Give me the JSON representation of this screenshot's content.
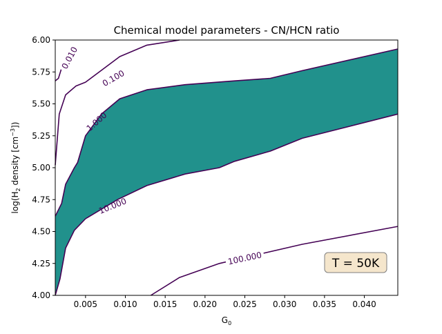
{
  "chart_data": {
    "type": "contour",
    "title": "Chemical model parameters - CN/HCN ratio",
    "xlabel": "G",
    "xlabel_sub": "0",
    "ylabel_parts": [
      "log(H",
      "2",
      " density [cm",
      "−3",
      "])"
    ],
    "xlim": [
      0.0012,
      0.0442
    ],
    "ylim": [
      4.0,
      6.0
    ],
    "x_ticks": [
      {
        "value": 0.005,
        "label": "0.005"
      },
      {
        "value": 0.01,
        "label": "0.010"
      },
      {
        "value": 0.015,
        "label": "0.015"
      },
      {
        "value": 0.02,
        "label": "0.020"
      },
      {
        "value": 0.025,
        "label": "0.025"
      },
      {
        "value": 0.03,
        "label": "0.030"
      },
      {
        "value": 0.035,
        "label": "0.035"
      },
      {
        "value": 0.04,
        "label": "0.040"
      }
    ],
    "y_ticks": [
      {
        "value": 4.0,
        "label": "4.00"
      },
      {
        "value": 4.25,
        "label": "4.25"
      },
      {
        "value": 4.5,
        "label": "4.50"
      },
      {
        "value": 4.75,
        "label": "4.75"
      },
      {
        "value": 5.0,
        "label": "5.00"
      },
      {
        "value": 5.25,
        "label": "5.25"
      },
      {
        "value": 5.5,
        "label": "5.50"
      },
      {
        "value": 5.75,
        "label": "5.75"
      },
      {
        "value": 6.0,
        "label": "6.00"
      }
    ],
    "line_color": "#440154",
    "fill_color": "#21918c",
    "filled_band": {
      "from_level": "1.000",
      "to_level": "10.000"
    },
    "contours": [
      {
        "level": "0.010",
        "points": [
          [
            0.0012,
            5.68
          ],
          [
            0.0016,
            5.7
          ],
          [
            0.0022,
            5.82
          ]
        ],
        "label_at": [
          0.003,
          5.86
        ],
        "label_angle": -62
      },
      {
        "level": "0.100",
        "points": [
          [
            0.0012,
            5.02
          ],
          [
            0.0017,
            5.42
          ],
          [
            0.0025,
            5.57
          ],
          [
            0.0038,
            5.64
          ],
          [
            0.005,
            5.67
          ],
          [
            0.0093,
            5.87
          ],
          [
            0.0127,
            5.96
          ],
          [
            0.0168,
            6.0
          ]
        ],
        "label_at": [
          0.0085,
          5.7
        ],
        "label_angle": -30
      },
      {
        "level": "1.000",
        "points": [
          [
            0.0012,
            4.62
          ],
          [
            0.002,
            4.72
          ],
          [
            0.0025,
            4.87
          ],
          [
            0.0036,
            5.0
          ],
          [
            0.004,
            5.04
          ],
          [
            0.005,
            5.25
          ],
          [
            0.007,
            5.42
          ],
          [
            0.0093,
            5.54
          ],
          [
            0.0127,
            5.61
          ],
          [
            0.0175,
            5.65
          ],
          [
            0.0237,
            5.68
          ],
          [
            0.0282,
            5.7
          ],
          [
            0.0322,
            5.76
          ],
          [
            0.0442,
            5.93
          ]
        ],
        "label_at": [
          0.0064,
          5.36
        ],
        "label_angle": -42
      },
      {
        "level": "10.000",
        "points": [
          [
            0.0012,
            4.0
          ],
          [
            0.0018,
            4.13
          ],
          [
            0.0025,
            4.37
          ],
          [
            0.0036,
            4.51
          ],
          [
            0.005,
            4.6
          ],
          [
            0.009,
            4.75
          ],
          [
            0.0127,
            4.86
          ],
          [
            0.0175,
            4.95
          ],
          [
            0.0218,
            5.0
          ],
          [
            0.0237,
            5.05
          ],
          [
            0.0282,
            5.13
          ],
          [
            0.0322,
            5.23
          ],
          [
            0.0442,
            5.42
          ]
        ],
        "label_at": [
          0.0084,
          4.7
        ],
        "label_angle": -22
      },
      {
        "level": "100.000",
        "points": [
          [
            0.0132,
            4.0
          ],
          [
            0.0168,
            4.14
          ],
          [
            0.0218,
            4.25
          ],
          [
            0.0322,
            4.4
          ],
          [
            0.0442,
            4.54
          ]
        ],
        "label_at": [
          0.025,
          4.29
        ],
        "label_angle": -12
      }
    ],
    "annotation": {
      "text": "T = 50K",
      "position": "lower-right",
      "box_color": "#f5e6cc"
    },
    "grid": false,
    "legend": "none"
  }
}
